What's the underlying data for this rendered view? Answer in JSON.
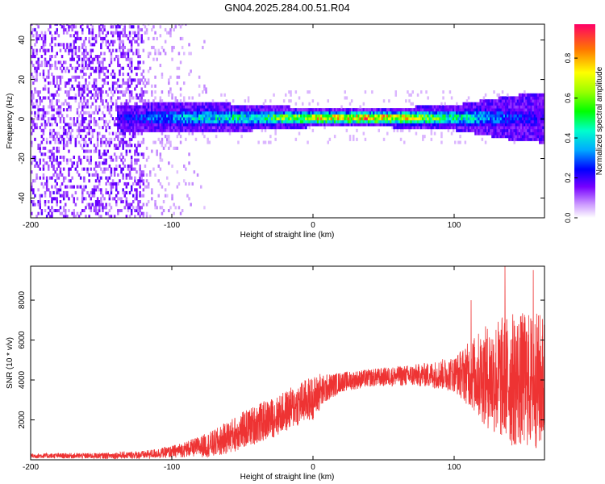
{
  "title": "GN04.2025.284.00.51.R04",
  "chart_data": [
    {
      "type": "heatmap",
      "xlabel": "Height of straight line (km)",
      "ylabel": "Frequency (Hz)",
      "xlim": [
        -200,
        164
      ],
      "ylim": [
        -50,
        48
      ],
      "xticks": [
        -200,
        -100,
        0,
        100
      ],
      "yticks": [
        -40,
        -20,
        0,
        20,
        40
      ],
      "colorbar": {
        "label": "Normalized spectral amplitude",
        "range": [
          0,
          0.97
        ],
        "ticks": [
          0.0,
          0.2,
          0.4,
          0.6,
          0.8
        ]
      },
      "band": {
        "center_frequency_hz": 0,
        "description_points": [
          {
            "x": -140,
            "halfwidth_hz": 4,
            "peak": 0.25
          },
          {
            "x": -90,
            "halfwidth_hz": 5,
            "peak": 0.45
          },
          {
            "x": -40,
            "halfwidth_hz": 4,
            "peak": 0.55
          },
          {
            "x": 0,
            "halfwidth_hz": 3,
            "peak": 0.85
          },
          {
            "x": 50,
            "halfwidth_hz": 3,
            "peak": 0.95
          },
          {
            "x": 100,
            "halfwidth_hz": 4,
            "peak": 0.55
          },
          {
            "x": 140,
            "halfwidth_hz": 7,
            "peak": 0.3
          },
          {
            "x": 164,
            "halfwidth_hz": 8,
            "peak": 0.25
          }
        ],
        "noise_region_x": [
          -200,
          -120
        ]
      }
    },
    {
      "type": "line",
      "xlabel": "Height of straight line (km)",
      "ylabel": "SNR (10 * v/v)",
      "xlim": [
        -200,
        164
      ],
      "ylim": [
        0,
        9700
      ],
      "xticks": [
        -200,
        -100,
        0,
        100
      ],
      "yticks": [
        2000,
        4000,
        6000,
        8000
      ],
      "color": "#ee3333",
      "envelope": {
        "x": [
          -200,
          -150,
          -120,
          -100,
          -85,
          -70,
          -55,
          -40,
          -25,
          -10,
          0,
          10,
          20,
          40,
          60,
          80,
          100,
          110,
          120,
          130,
          140,
          150,
          164
        ],
        "center": [
          200,
          200,
          250,
          400,
          600,
          800,
          1300,
          1800,
          2200,
          2800,
          3100,
          3600,
          3900,
          4100,
          4200,
          4250,
          4300,
          4300,
          4200,
          4100,
          4000,
          4000,
          3900
        ],
        "spread": [
          120,
          150,
          200,
          300,
          450,
          700,
          900,
          1000,
          1000,
          1100,
          1100,
          700,
          500,
          450,
          500,
          600,
          900,
          1600,
          2400,
          3000,
          3400,
          3400,
          3500
        ]
      },
      "peaks": [
        {
          "x": 5,
          "y": 4300
        },
        {
          "x": 112,
          "y": 8000
        },
        {
          "x": 136,
          "y": 9700
        },
        {
          "x": 156,
          "y": 9500
        }
      ]
    }
  ]
}
